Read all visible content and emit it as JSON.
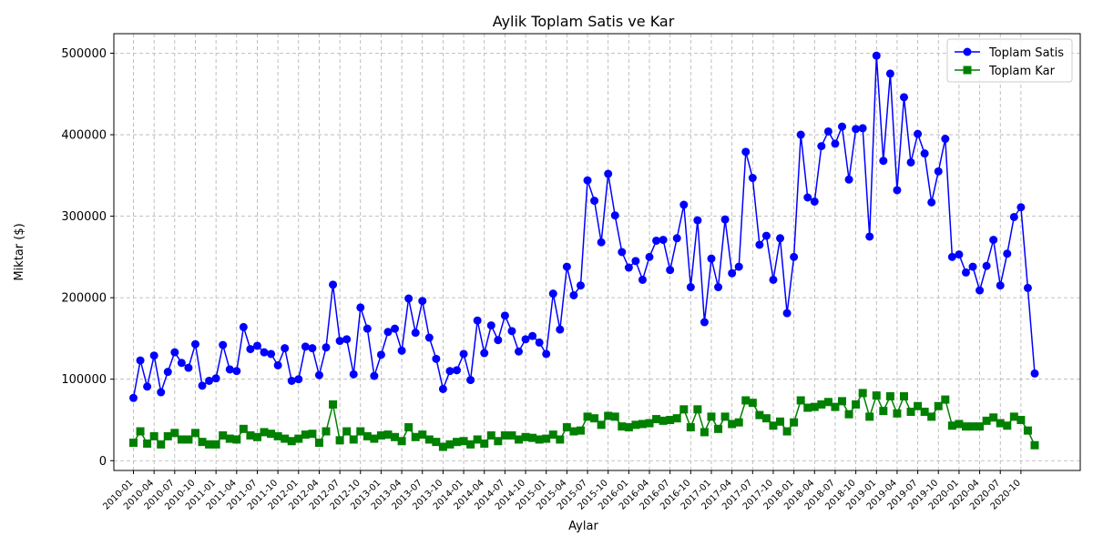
{
  "chart_data": {
    "type": "line",
    "title": "Aylik Toplam Satis ve Kar",
    "xlabel": "Aylar",
    "ylabel": "Miktar ($)",
    "ylim": [
      -12000,
      524000
    ],
    "y_ticks": [
      0,
      100000,
      200000,
      300000,
      400000,
      500000
    ],
    "y_tick_labels": [
      "0",
      "100000",
      "200000",
      "300000",
      "400000",
      "500000"
    ],
    "grid": true,
    "legend_position": "top-right",
    "start_month": "2010-01",
    "x_tick_every": 3,
    "x_tick_labels": [
      "2010-01",
      "2010-04",
      "2010-07",
      "2010-10",
      "2011-01",
      "2011-04",
      "2011-07",
      "2011-10",
      "2012-01",
      "2012-04",
      "2012-07",
      "2012-10",
      "2013-01",
      "2013-04",
      "2013-07",
      "2013-10",
      "2014-01",
      "2014-04",
      "2014-07",
      "2014-10",
      "2015-01",
      "2015-04",
      "2015-07",
      "2015-10",
      "2016-01",
      "2016-04",
      "2016-07",
      "2016-10",
      "2017-01",
      "2017-04",
      "2017-07",
      "2017-10",
      "2018-01",
      "2018-04",
      "2018-07",
      "2018-10",
      "2019-01",
      "2019-04",
      "2019-07",
      "2019-10",
      "2020-01",
      "2020-04",
      "2020-07",
      "2020-10"
    ],
    "series": [
      {
        "name": "Toplam Satis",
        "color": "#0000ff",
        "marker": "circle",
        "values": [
          77000,
          123000,
          91000,
          129000,
          84000,
          109000,
          133000,
          120000,
          114000,
          143000,
          92000,
          98000,
          101000,
          142000,
          112000,
          110000,
          164000,
          137000,
          141000,
          133000,
          131000,
          117000,
          138000,
          98000,
          100000,
          140000,
          138000,
          105000,
          139000,
          216000,
          147000,
          149000,
          106000,
          188000,
          162000,
          104000,
          130000,
          158000,
          162000,
          135000,
          199000,
          157000,
          196000,
          151000,
          125000,
          88000,
          110000,
          111000,
          131000,
          99000,
          172000,
          132000,
          166000,
          148000,
          178000,
          159000,
          134000,
          149000,
          153000,
          145000,
          131000,
          205000,
          161000,
          238000,
          203000,
          215000,
          344000,
          319000,
          268000,
          352000,
          301000,
          256000,
          237000,
          245000,
          222000,
          250000,
          270000,
          271000,
          234000,
          273000,
          314000,
          213000,
          295000,
          170000,
          248000,
          213000,
          296000,
          230000,
          238000,
          379000,
          347000,
          265000,
          276000,
          222000,
          273000,
          181000,
          250000,
          400000,
          323000,
          318000,
          386000,
          404000,
          389000,
          410000,
          345000,
          407000,
          408000,
          275000,
          497000,
          368000,
          475000,
          332000,
          446000,
          366000,
          401000,
          377000,
          317000,
          355000,
          395000,
          250000,
          253000,
          231000,
          238000,
          209000,
          239000,
          271000,
          215000,
          254000,
          299000,
          311000,
          212000,
          107000
        ]
      },
      {
        "name": "Toplam Kar",
        "color": "#008000",
        "marker": "square",
        "values": [
          22000,
          36000,
          21000,
          30000,
          20000,
          30000,
          34000,
          26000,
          26000,
          34000,
          23000,
          20000,
          20000,
          31000,
          27000,
          26000,
          39000,
          31000,
          29000,
          35000,
          33000,
          30000,
          27000,
          24000,
          27000,
          32000,
          33000,
          22000,
          36000,
          69000,
          25000,
          36000,
          26000,
          36000,
          30000,
          27000,
          31000,
          32000,
          29000,
          24000,
          41000,
          29000,
          32000,
          26000,
          23000,
          17000,
          20000,
          23000,
          24000,
          20000,
          26000,
          21000,
          31000,
          24000,
          31000,
          31000,
          26000,
          29000,
          28000,
          26000,
          27000,
          32000,
          26000,
          41000,
          36000,
          37000,
          54000,
          52000,
          44000,
          55000,
          54000,
          42000,
          41000,
          44000,
          45000,
          46000,
          51000,
          49000,
          50000,
          52000,
          63000,
          41000,
          63000,
          35000,
          54000,
          39000,
          54000,
          45000,
          47000,
          74000,
          71000,
          56000,
          52000,
          43000,
          48000,
          36000,
          47000,
          74000,
          65000,
          66000,
          69000,
          72000,
          66000,
          73000,
          57000,
          69000,
          83000,
          54000,
          80000,
          61000,
          79000,
          58000,
          79000,
          60000,
          67000,
          60000,
          54000,
          67000,
          75000,
          43000,
          45000,
          42000,
          42000,
          42000,
          49000,
          53000,
          46000,
          43000,
          54000,
          50000,
          37000,
          19000
        ]
      }
    ]
  }
}
